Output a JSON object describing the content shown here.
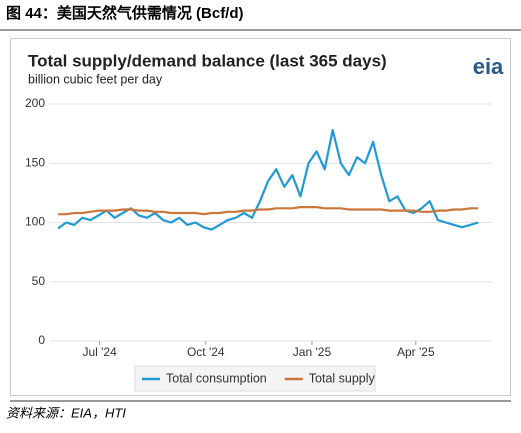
{
  "caption": "图 44：美国天然气供需情况 (Bcf/d)",
  "source": "资料来源：EIA，HTI",
  "logo": "eia",
  "chart_data": {
    "type": "line",
    "title": "Total supply/demand balance (last 365 days)",
    "subtitle": "billion cubic feet per day",
    "x": [
      0,
      7,
      14,
      21,
      28,
      35,
      42,
      49,
      56,
      63,
      70,
      77,
      84,
      91,
      98,
      105,
      112,
      119,
      126,
      133,
      140,
      147,
      154,
      161,
      168,
      175,
      182,
      189,
      196,
      203,
      210,
      217,
      224,
      231,
      238,
      245,
      252,
      259,
      266,
      273,
      280,
      287,
      294,
      301,
      308,
      315,
      322,
      329,
      336,
      343,
      350,
      357,
      364
    ],
    "xlim": [
      -7,
      376
    ],
    "xticks": [
      {
        "value": 36,
        "label": "Jul '24"
      },
      {
        "value": 128,
        "label": "Oct '24"
      },
      {
        "value": 220,
        "label": "Jan '25"
      },
      {
        "value": 310,
        "label": "Apr '25"
      }
    ],
    "ylim": [
      0,
      200
    ],
    "yticks": [
      0,
      50,
      100,
      150,
      200
    ],
    "grid": true,
    "series": [
      {
        "name": "Total consumption",
        "color": "#1f9ad6",
        "values": [
          95,
          100,
          98,
          104,
          102,
          106,
          110,
          104,
          108,
          112,
          106,
          104,
          108,
          102,
          100,
          104,
          98,
          100,
          96,
          94,
          98,
          102,
          104,
          108,
          104,
          118,
          135,
          145,
          130,
          140,
          122,
          150,
          160,
          145,
          178,
          150,
          140,
          155,
          150,
          168,
          140,
          118,
          122,
          110,
          108,
          112,
          118,
          102,
          100,
          98,
          96,
          98,
          100
        ]
      },
      {
        "name": "Total supply",
        "color": "#c8763a",
        "values": [
          107,
          107,
          108,
          108,
          109,
          110,
          110,
          110,
          111,
          111,
          110,
          110,
          109,
          109,
          108,
          108,
          108,
          108,
          107,
          108,
          108,
          109,
          109,
          110,
          110,
          111,
          111,
          112,
          112,
          112,
          113,
          113,
          113,
          112,
          112,
          112,
          111,
          111,
          111,
          111,
          111,
          110,
          110,
          110,
          110,
          109,
          109,
          110,
          110,
          111,
          111,
          112,
          112
        ]
      }
    ]
  }
}
